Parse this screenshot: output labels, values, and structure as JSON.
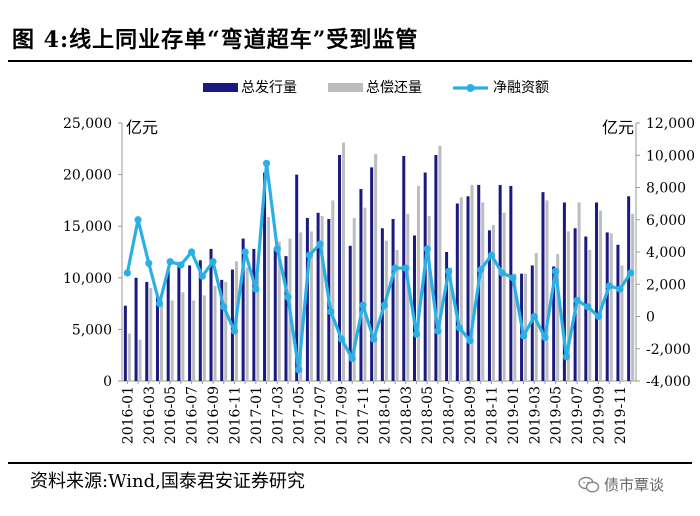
{
  "header": {
    "title": "图 4:线上同业存单“弯道超车”受到监管"
  },
  "footer": {
    "source": "资料来源:Wind,国泰君安证券研究",
    "logo_text": "债市覃谈"
  },
  "chart_data": {
    "type": "bar",
    "title": "",
    "y_left_unit": "亿元",
    "y_right_unit": "亿元",
    "ylim_left": [
      0,
      25000
    ],
    "yticks_left": [
      0,
      5000,
      10000,
      15000,
      20000,
      25000
    ],
    "ytick_labels_left": [
      "0",
      "5,000",
      "10,000",
      "15,000",
      "20,000",
      "25,000"
    ],
    "ylim_right": [
      -4000,
      12000
    ],
    "yticks_right": [
      -4000,
      -2000,
      0,
      2000,
      4000,
      6000,
      8000,
      10000,
      12000
    ],
    "ytick_labels_right": [
      "-4,000",
      "-2,000",
      "0",
      "2,000",
      "4,000",
      "6,000",
      "8,000",
      "10,000",
      "12,000"
    ],
    "grid": false,
    "legend_position": "top-center",
    "categories": [
      "2016-01",
      "2016-02",
      "2016-03",
      "2016-04",
      "2016-05",
      "2016-06",
      "2016-07",
      "2016-08",
      "2016-09",
      "2016-10",
      "2016-11",
      "2016-12",
      "2017-01",
      "2017-02",
      "2017-03",
      "2017-04",
      "2017-05",
      "2017-06",
      "2017-07",
      "2017-08",
      "2017-09",
      "2017-10",
      "2017-11",
      "2017-12",
      "2018-01",
      "2018-02",
      "2018-03",
      "2018-04",
      "2018-05",
      "2018-06",
      "2018-07",
      "2018-08",
      "2018-09",
      "2018-10",
      "2018-11",
      "2018-12",
      "2019-01",
      "2019-02",
      "2019-03",
      "2019-04",
      "2019-05",
      "2019-06",
      "2019-07",
      "2019-08",
      "2019-09",
      "2019-10",
      "2019-11",
      "2019-12"
    ],
    "x_tick_labels": [
      "2016-01",
      "2016-03",
      "2016-05",
      "2016-07",
      "2016-09",
      "2016-11",
      "2017-01",
      "2017-03",
      "2017-05",
      "2017-07",
      "2017-09",
      "2017-11",
      "2018-01",
      "2018-03",
      "2018-05",
      "2018-07",
      "2018-09",
      "2018-11",
      "2019-01",
      "2019-03",
      "2019-05",
      "2019-07",
      "2019-09",
      "2019-11"
    ],
    "series": [
      {
        "name": "总发行量",
        "kind": "bar",
        "axis": "left",
        "color": "#1a1a80",
        "values": [
          7300,
          10000,
          9600,
          8200,
          10700,
          11500,
          11200,
          11700,
          12800,
          9800,
          10800,
          13800,
          12800,
          20200,
          12900,
          12100,
          20000,
          15800,
          16300,
          15700,
          21900,
          13100,
          18600,
          20700,
          14800,
          15700,
          21800,
          14100,
          20200,
          21900,
          12500,
          17200,
          17900,
          19000,
          14600,
          19000,
          18900,
          10400,
          11200,
          18300,
          11100,
          17300,
          14800,
          14000,
          17300,
          14400,
          13200,
          17900
        ]
      },
      {
        "name": "总偿还量",
        "kind": "bar",
        "axis": "left",
        "color": "#bdbdbd",
        "values": [
          4600,
          4000,
          9000,
          7800,
          7800,
          8600,
          7800,
          8300,
          9200,
          9600,
          11600,
          11000,
          10200,
          15900,
          13500,
          13800,
          14400,
          14500,
          16000,
          17500,
          23100,
          15800,
          16800,
          22000,
          13600,
          12700,
          16200,
          18900,
          16000,
          22800,
          11000,
          17800,
          19000,
          17300,
          15100,
          16300,
          10400,
          10400,
          12400,
          17500,
          12300,
          14500,
          17300,
          12700,
          16500,
          14300,
          11200,
          16200
        ]
      },
      {
        "name": "净融资额",
        "kind": "line",
        "axis": "right",
        "color": "#2bb0e6",
        "values": [
          2700,
          6000,
          3300,
          800,
          3400,
          3200,
          4000,
          2500,
          3400,
          600,
          -900,
          4000,
          1700,
          9500,
          4200,
          1200,
          -3300,
          3800,
          4500,
          300,
          -1400,
          -2600,
          700,
          -1400,
          700,
          3000,
          3000,
          -1100,
          4200,
          -900,
          2800,
          -700,
          -1500,
          2900,
          3800,
          2700,
          2400,
          -1200,
          0,
          -1300,
          2800,
          -2500,
          1000,
          600,
          0,
          1900,
          1700,
          2700
        ]
      }
    ]
  }
}
